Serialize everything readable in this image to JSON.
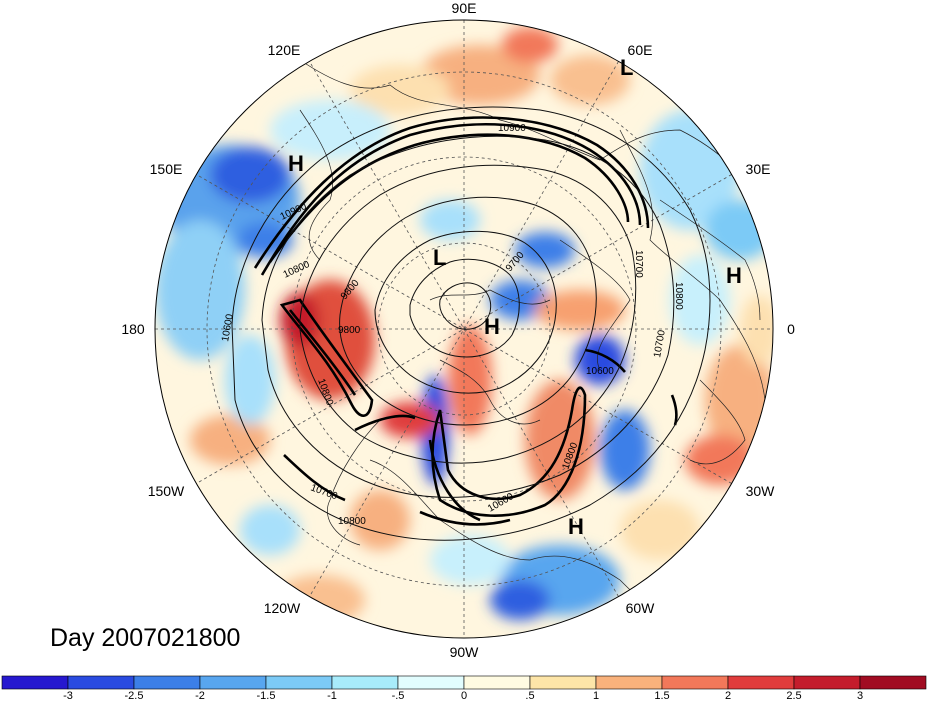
{
  "title": "Day 2007021800",
  "longitude_labels": [
    "90E",
    "60E",
    "30E",
    "0",
    "30W",
    "60W",
    "90W",
    "120W",
    "150W",
    "180",
    "150E",
    "120E"
  ],
  "pressure_centers": [
    {
      "type": "H",
      "lon": 140,
      "lat": 35
    },
    {
      "type": "L",
      "lon": 62,
      "lat": 20
    },
    {
      "type": "H",
      "lon": 10,
      "lat": 33
    },
    {
      "type": "H",
      "lon": 60,
      "lat": 88
    },
    {
      "type": "L",
      "lon": 110,
      "lat": 65
    },
    {
      "type": "H",
      "lon": 40,
      "lat": 30
    }
  ],
  "contour_labels": [
    "10900",
    "10900",
    "10800",
    "10800",
    "9800",
    "9800",
    "9700",
    "10700",
    "10800",
    "10700",
    "10600",
    "10600",
    "10800",
    "10700",
    "10800",
    "10600"
  ],
  "colorbar": {
    "labels": [
      "-3",
      "-2.5",
      "-2",
      "-1.5",
      "-1",
      "-.5",
      "0",
      ".5",
      "1",
      "1.5",
      "2",
      "2.5",
      "3"
    ],
    "colors": [
      "#2618cf",
      "#2a4be0",
      "#3c7fe8",
      "#58a6ef",
      "#7ccaf6",
      "#a8ecfb",
      "#e2fdfe",
      "#fffbe2",
      "#fde5a8",
      "#f9b27c",
      "#f2785a",
      "#e03c3c",
      "#c41c2c",
      "#a10c22"
    ]
  }
}
